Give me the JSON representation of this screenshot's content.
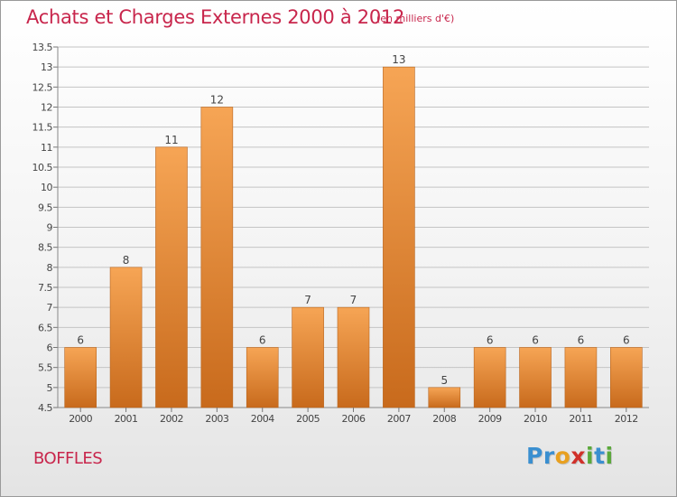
{
  "header": {
    "title": "Achats et Charges Externes 2000 à 2012",
    "unit": "(en milliers d'€)"
  },
  "footer": {
    "commune": "BOFFLES",
    "brand_letters": [
      {
        "ch": "P",
        "color": "#3a8fd0"
      },
      {
        "ch": "r",
        "color": "#3a8fd0"
      },
      {
        "ch": "o",
        "color": "#e8a020"
      },
      {
        "ch": "x",
        "color": "#d0302a"
      },
      {
        "ch": "i",
        "color": "#5aa83a"
      },
      {
        "ch": "t",
        "color": "#3a8fd0"
      },
      {
        "ch": "i",
        "color": "#5aa83a"
      }
    ]
  },
  "colors": {
    "bar_top": "#f6a555",
    "bar_bottom": "#c86a1c",
    "grid": "#c4c4c4",
    "axis_text": "#444444"
  },
  "chart_data": {
    "type": "bar",
    "categories": [
      "2000",
      "2001",
      "2002",
      "2003",
      "2004",
      "2005",
      "2006",
      "2007",
      "2008",
      "2009",
      "2010",
      "2011",
      "2012"
    ],
    "values": [
      6,
      8,
      11,
      12,
      6,
      7,
      7,
      13,
      5,
      6,
      6,
      6,
      6
    ],
    "value_labels": [
      "6",
      "8",
      "11",
      "12",
      "6",
      "7",
      "7",
      "13",
      "5",
      "6",
      "6",
      "6",
      "6"
    ],
    "ylim": [
      4.5,
      13.5
    ],
    "yticks": [
      4.5,
      5,
      5.5,
      6,
      6.5,
      7,
      7.5,
      8,
      8.5,
      9,
      9.5,
      10,
      10.5,
      11,
      11.5,
      12,
      12.5,
      13,
      13.5
    ],
    "ytick_labels": [
      "4.5",
      "5",
      "5.5",
      "6",
      "6.5",
      "7",
      "7.5",
      "8",
      "8.5",
      "9",
      "9.5",
      "10",
      "10.5",
      "11",
      "11.5",
      "12",
      "12.5",
      "13",
      "13.5"
    ],
    "grid": true,
    "title": "Achats et Charges Externes 2000 à 2012",
    "xlabel": "",
    "ylabel": ""
  }
}
